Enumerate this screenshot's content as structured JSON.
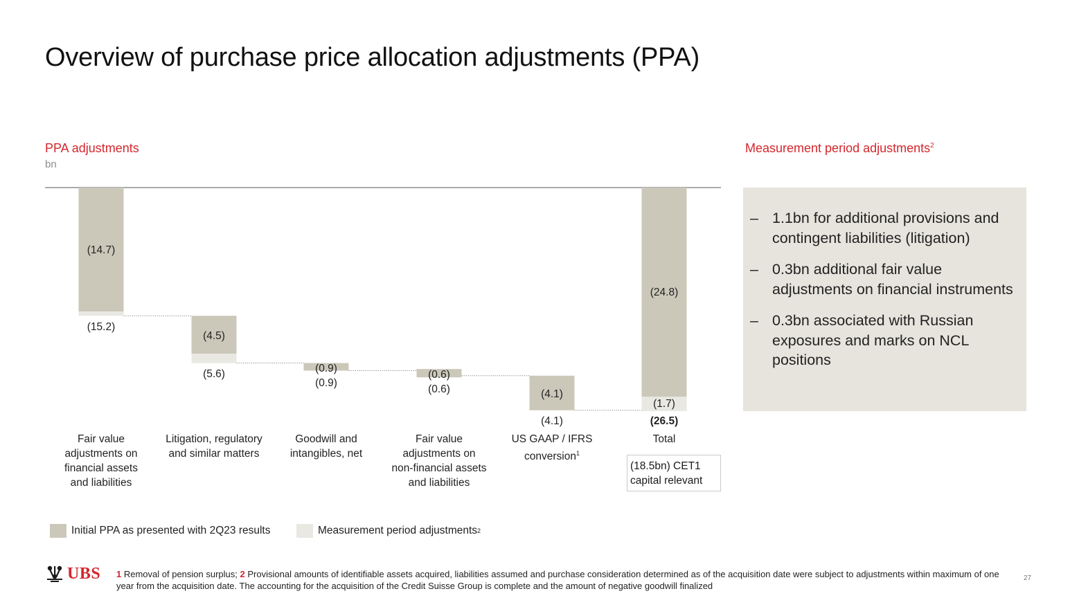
{
  "page": {
    "title": "Overview of purchase price allocation adjustments (PPA)",
    "page_number": "27"
  },
  "chart_heading": "PPA adjustments",
  "chart_unit": "bn",
  "colors": {
    "initial": "#cbc8ba",
    "measurement": "#e9e8e2",
    "accent": "#d4262c",
    "side_box": "#e6e4dc"
  },
  "chart_data": {
    "type": "waterfall",
    "categories": [
      "Fair value adjustments on financial assets and liabilities",
      "Litigation, regulatory and similar matters",
      "Goodwill and intangibles, net",
      "Fair value adjustments on non-financial assets and liabilities",
      "US GAAP / IFRS conversion",
      "Total"
    ],
    "category_lines": [
      [
        "Fair value",
        "adjustments on",
        "financial assets",
        "and liabilities"
      ],
      [
        "Litigation, regulatory",
        "and similar matters"
      ],
      [
        "Goodwill and",
        "intangibles, net"
      ],
      [
        "Fair value",
        "adjustments on",
        "non-financial assets",
        "and liabilities"
      ],
      [
        "US GAAP / IFRS",
        "conversion"
      ],
      [
        "Total"
      ]
    ],
    "category_footnotes": [
      "",
      "",
      "",
      "",
      "1",
      ""
    ],
    "series": [
      {
        "name": "Initial PPA as presented with 2Q23 results",
        "values": [
          -14.7,
          -4.5,
          -0.9,
          -0.6,
          -4.1,
          -24.8
        ],
        "labels": [
          "(14.7)",
          "(4.5)",
          "(0.9)",
          "(0.6)",
          "(4.1)",
          "(24.8)"
        ]
      },
      {
        "name": "Measurement period adjustments",
        "values": [
          -0.5,
          -1.1,
          0.0,
          0.0,
          0.0,
          -1.7
        ],
        "labels": [
          "",
          "",
          "",
          "",
          "",
          "(1.7)"
        ]
      }
    ],
    "totals": [
      -15.2,
      -5.6,
      -0.9,
      -0.6,
      -4.1,
      -26.5
    ],
    "total_labels": [
      "(15.2)",
      "(5.6)",
      "(0.9)",
      "(0.6)",
      "(4.1)",
      "(26.5)"
    ],
    "cumulative_start": [
      0,
      -15.2,
      -20.8,
      -21.7,
      -22.3,
      0
    ],
    "ylim": [
      -26.5,
      0
    ],
    "legend": [
      {
        "label": "Initial PPA as presented with 2Q23 results",
        "footnote": ""
      },
      {
        "label": "Measurement period adjustments",
        "footnote": "2"
      }
    ],
    "annotation": {
      "line1": "(18.5bn) CET1",
      "line2": "capital relevant"
    }
  },
  "side_panel": {
    "heading": "Measurement period adjustments",
    "heading_footnote": "2",
    "items": [
      {
        "dash": "–",
        "text": "1.1bn for additional provisions and contingent liabilities (litigation)"
      },
      {
        "dash": "–",
        "text": "0.3bn additional fair value adjustments on financial instruments"
      },
      {
        "dash": "–",
        "text": "0.3bn associated with Russian exposures and marks on NCL positions"
      }
    ]
  },
  "footer": {
    "logo_text": "UBS",
    "footnote_1_num": "1",
    "footnote_1_text": "Removal of pension surplus;",
    "footnote_2_num": "2",
    "footnote_2_text": "Provisional amounts of identifiable assets acquired, liabilities assumed and purchase consideration determined as of the acquisition date were subject to adjustments within maximum of one year from the acquisition date. The accounting for the acquisition of the Credit Suisse Group is complete and the amount of negative goodwill finalized"
  }
}
